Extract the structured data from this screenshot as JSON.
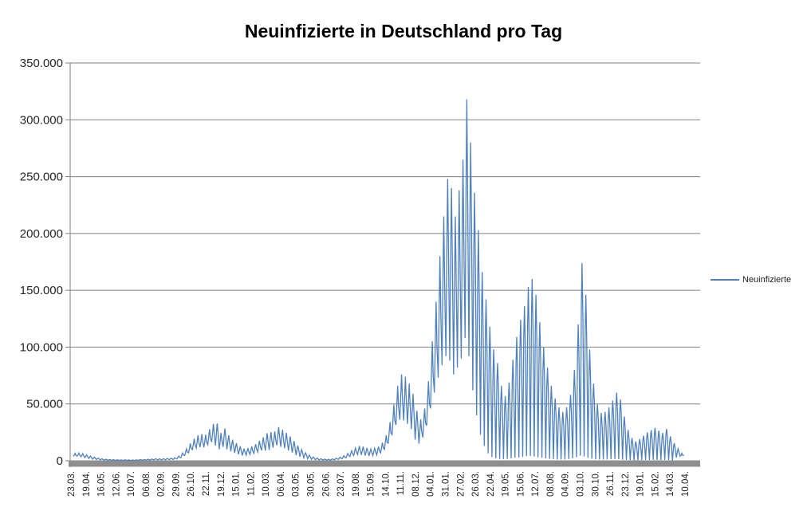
{
  "chart_data": {
    "type": "line",
    "title": "Neuinfizierte in Deutschland pro Tag",
    "xlabel": "",
    "ylabel": "",
    "grid": true,
    "legend_position": "right-middle",
    "y_axis": {
      "min": 0,
      "max": 350000,
      "step": 50000,
      "tick_labels": [
        "350.000",
        "300.000",
        "250.000",
        "200.000",
        "150.000",
        "100.000",
        "50.000",
        "0"
      ]
    },
    "x_tick_labels": [
      "23.03.",
      "19.04.",
      "16.05.",
      "12.06.",
      "10.07.",
      "06.08.",
      "02.09.",
      "29.09.",
      "26.10.",
      "22.11.",
      "19.12.",
      "15.01.",
      "11.02.",
      "10.03.",
      "06.04.",
      "03.05.",
      "30.05.",
      "26.06.",
      "23.07.",
      "19.08.",
      "15.09.",
      "14.10.",
      "11.11.",
      "08.12.",
      "04.01.",
      "31.01.",
      "27.02.",
      "26.03.",
      "22.04.",
      "19.05.",
      "15.06.",
      "12.07.",
      "08.08.",
      "04.09.",
      "03.10.",
      "30.10.",
      "26.11.",
      "23.12.",
      "19.01.",
      "15.02.",
      "14.03.",
      "10.04."
    ],
    "series": [
      {
        "name": "Neuinfizierte",
        "color": "#4F81BD",
        "sampling_note": "Daily reported new COVID-19 infections in Germany from 23.03.2020 to April 2023, summarized as a weekly envelope (weekly peak hi, weekly minimum lo); the daily line oscillates between lo and hi within each week.",
        "week_length_days": 7,
        "weekly_hi": [
          6600,
          6800,
          6300,
          5200,
          4200,
          3200,
          2400,
          1800,
          1400,
          1100,
          950,
          850,
          800,
          850,
          750,
          700,
          800,
          950,
          1150,
          1350,
          1550,
          1850,
          1750,
          1850,
          2100,
          2300,
          2700,
          4200,
          6800,
          10500,
          15200,
          19500,
          22500,
          23500,
          23000,
          27800,
          32500,
          32800,
          24500,
          28500,
          22500,
          18500,
          15500,
          12800,
          10800,
          11200,
          12600,
          14600,
          17600,
          20600,
          24200,
          25200,
          25800,
          29600,
          27200,
          24600,
          21400,
          17400,
          13400,
          9800,
          7000,
          4900,
          3400,
          2400,
          1800,
          1450,
          1350,
          1650,
          2250,
          3150,
          4450,
          6400,
          8800,
          11200,
          13000,
          12400,
          11300,
          10400,
          11000,
          12400,
          16000,
          22500,
          34000,
          49500,
          66000,
          76000,
          74000,
          68000,
          59000,
          44000,
          36500,
          46000,
          70000,
          105000,
          140000,
          180000,
          215000,
          248000,
          240000,
          215000,
          238000,
          265000,
          318000,
          280000,
          236000,
          203000,
          166000,
          142000,
          118000,
          98000,
          86000,
          66000,
          57000,
          69000,
          89000,
          109000,
          124000,
          136000,
          153000,
          160000,
          146000,
          122000,
          100000,
          82000,
          66000,
          55000,
          47000,
          43000,
          47000,
          58000,
          80000,
          120000,
          174000,
          146000,
          98000,
          68000,
          50000,
          42000,
          43000,
          47000,
          53000,
          60000,
          54000,
          39000,
          27000,
          20000,
          17000,
          19000,
          22000,
          25000,
          27000,
          29000,
          26500,
          24500,
          28000,
          21500,
          15500,
          10500,
          6500
        ],
        "weekly_lo": [
          4000,
          4200,
          3600,
          2800,
          2000,
          1500,
          1100,
          800,
          600,
          480,
          400,
          360,
          340,
          360,
          320,
          300,
          340,
          400,
          480,
          560,
          650,
          780,
          730,
          780,
          880,
          960,
          1150,
          1700,
          2800,
          4600,
          7000,
          9800,
          11300,
          12000,
          11800,
          14200,
          16500,
          13500,
          10200,
          12200,
          10200,
          8300,
          6800,
          5600,
          4700,
          5000,
          5600,
          6500,
          7800,
          9100,
          9000,
          9500,
          11500,
          13600,
          12200,
          11000,
          9100,
          7200,
          5000,
          3500,
          2500,
          1750,
          1200,
          880,
          650,
          540,
          500,
          620,
          850,
          1250,
          1800,
          2600,
          3700,
          4700,
          5500,
          5200,
          4700,
          4300,
          4600,
          5200,
          7000,
          10000,
          15500,
          23000,
          31500,
          36000,
          35500,
          32500,
          28000,
          18500,
          15000,
          20500,
          31000,
          46000,
          60000,
          73000,
          84000,
          92000,
          88000,
          76000,
          82000,
          90000,
          108000,
          92000,
          62000,
          40000,
          23000,
          13000,
          6500,
          3200,
          2200,
          1600,
          1300,
          1600,
          2100,
          2600,
          3000,
          3400,
          4000,
          4300,
          3800,
          3100,
          2600,
          2100,
          1700,
          1400,
          1200,
          1100,
          1200,
          1500,
          2100,
          3100,
          4500,
          3800,
          2500,
          1700,
          1300,
          1100,
          1100,
          1200,
          1400,
          1600,
          1400,
          1000,
          700,
          550,
          450,
          500,
          600,
          650,
          700,
          780,
          700,
          650,
          750,
          570,
          420,
          2800,
          4000
        ],
        "end_value": 5000
      }
    ]
  },
  "colors": {
    "background": "#ffffff",
    "gridline": "#808080",
    "axis_line": "#808080",
    "zero_bar": "#8e8e8e",
    "axis_text": "#262626",
    "title_text": "#000000"
  }
}
